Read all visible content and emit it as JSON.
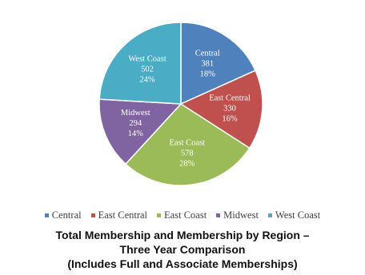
{
  "chart_data": {
    "type": "pie",
    "categories": [
      "Central",
      "East Central",
      "East Coast",
      "Midwest",
      "West Coast"
    ],
    "values": [
      381,
      330,
      578,
      294,
      502
    ],
    "percent_labels": [
      "18%",
      "16%",
      "28%",
      "14%",
      "24%"
    ],
    "colors": [
      "#4F81BD",
      "#C0504D",
      "#9BBB59",
      "#8064A2",
      "#4BACC6"
    ],
    "legend_position": "bottom"
  },
  "caption": {
    "line1": "Total Membership and Membership by Region –",
    "line2": "Three Year Comparison",
    "line3": "(Includes Full and Associate Memberships)"
  }
}
